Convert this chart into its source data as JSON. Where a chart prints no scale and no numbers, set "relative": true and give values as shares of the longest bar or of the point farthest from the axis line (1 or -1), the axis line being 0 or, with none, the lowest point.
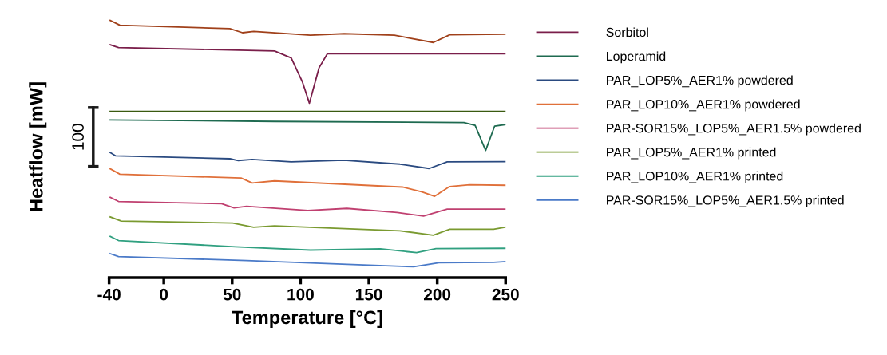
{
  "chart_data": {
    "type": "line",
    "xlabel": "Temperature [°C]",
    "ylabel": "Heatflow [mW]",
    "annotations": [
      "100"
    ],
    "xlim": [
      -40,
      250
    ],
    "xticks": [
      -40,
      0,
      50,
      100,
      150,
      200,
      250
    ],
    "relative": true,
    "tick_labels": "x",
    "grid": false,
    "legend": "right",
    "marker": "none",
    "line_style": "solid",
    "series": [
      {
        "color": "#a0401a",
        "x": [
          -39.2,
          -32.1,
          48.3,
          57.6,
          65.8,
          107.3,
          131.9,
          168.7,
          197.1,
          209.1,
          250
        ],
        "values": [
          1,
          0.981,
          0.968,
          0.952,
          0.957,
          0.942,
          0.948,
          0.942,
          0.914,
          0.944,
          0.946
        ]
      },
      {
        "name": "Sorbitol",
        "color": "#7a1e4a",
        "x": [
          -39.2,
          -33.1,
          81.0,
          93.2,
          101.3,
          106.5,
          113.6,
          119.6,
          250
        ],
        "values": [
          0.905,
          0.894,
          0.881,
          0.854,
          0.762,
          0.678,
          0.816,
          0.87,
          0.87
        ]
      },
      {
        "color": "#3a5a10",
        "x": [
          -39.2,
          250
        ],
        "values": [
          0.646,
          0.646
        ]
      },
      {
        "name": "Loperamid",
        "color": "#1e6a50",
        "x": [
          -39.2,
          81.0,
          219.5,
          227.7,
          235.4,
          242.0,
          250
        ],
        "values": [
          0.613,
          0.607,
          0.603,
          0.592,
          0.494,
          0.589,
          0.595
        ]
      },
      {
        "name": "PAR_LOP5%_AER1% powdered",
        "color": "#2a4a80",
        "x": [
          -39.2,
          -35.1,
          48.4,
          54.5,
          64.7,
          93.2,
          131.9,
          172.7,
          194.1,
          207.3,
          250
        ],
        "values": [
          0.486,
          0.473,
          0.462,
          0.455,
          0.459,
          0.45,
          0.456,
          0.441,
          0.424,
          0.45,
          0.451
        ]
      },
      {
        "name": "PAR_LOP10%_AER1% powdered",
        "color": "#e0703a",
        "x": [
          -39.2,
          -32.1,
          56.5,
          64.7,
          81.0,
          174.6,
          189.0,
          198.1,
          209.1,
          223.6,
          250
        ],
        "values": [
          0.423,
          0.402,
          0.387,
          0.368,
          0.376,
          0.352,
          0.333,
          0.316,
          0.354,
          0.361,
          0.359
        ]
      },
      {
        "name": "PAR-SOR15%_LOP5%_AER1.5% powdered",
        "color": "#c04070",
        "x": [
          -39.2,
          -33.1,
          42.3,
          51.4,
          60.6,
          105.4,
          133.9,
          170.6,
          190.0,
          207.3,
          250
        ],
        "values": [
          0.312,
          0.296,
          0.287,
          0.271,
          0.277,
          0.261,
          0.269,
          0.253,
          0.239,
          0.266,
          0.266
        ]
      },
      {
        "name": "PAR_LOP5%_AER1% printed",
        "color": "#7a9a30",
        "x": [
          -39.2,
          -31.1,
          50.4,
          65.7,
          81.0,
          172.7,
          197.1,
          209.1,
          241.2,
          250
        ],
        "values": [
          0.236,
          0.22,
          0.212,
          0.196,
          0.201,
          0.182,
          0.165,
          0.188,
          0.188,
          0.196
        ]
      },
      {
        "name": "PAR_LOP10%_AER1% printed",
        "color": "#30a080",
        "x": [
          -39.2,
          -33.1,
          52.4,
          107.3,
          158.4,
          184.9,
          199.1,
          250
        ],
        "values": [
          0.16,
          0.144,
          0.12,
          0.107,
          0.112,
          0.097,
          0.113,
          0.114
        ]
      },
      {
        "name": "PAR-SOR15%_LOP5%_AER1.5% printed",
        "color": "#4a7ac8",
        "x": [
          -39.2,
          -33.1,
          60.6,
          142.1,
          182.8,
          201.2,
          241.2,
          250
        ],
        "values": [
          0.093,
          0.082,
          0.066,
          0.05,
          0.042,
          0.058,
          0.059,
          0.062
        ]
      }
    ]
  }
}
